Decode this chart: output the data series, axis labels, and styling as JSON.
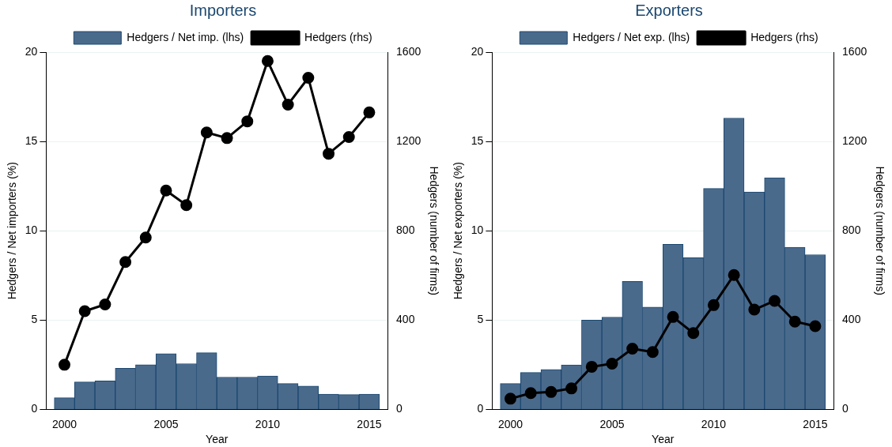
{
  "chart_data": [
    {
      "type": "bar",
      "title": "Importers",
      "xlabel": "Year",
      "ylabel": "Hedgers / Net importers (%)",
      "y2label": "Hedgers (number of firms)",
      "x": [
        2000,
        2001,
        2002,
        2003,
        2004,
        2005,
        2006,
        2007,
        2008,
        2009,
        2010,
        2011,
        2012,
        2013,
        2014,
        2015
      ],
      "xlim": [
        1999.1,
        2015.9
      ],
      "xticks": [
        2000,
        2005,
        2010,
        2015
      ],
      "ylim": [
        0,
        20
      ],
      "yticks": [
        0,
        5,
        10,
        15,
        20
      ],
      "y2lim": [
        0,
        1600
      ],
      "y2ticks": [
        0,
        400,
        800,
        1200,
        1600
      ],
      "grid": "y",
      "legend": "top",
      "series": [
        {
          "name": "Hedgers / Net imp. (lhs)",
          "color": "#4a6a8c",
          "values": [
            0.65,
            1.54,
            1.59,
            2.3,
            2.5,
            3.12,
            2.56,
            3.17,
            1.81,
            1.81,
            1.87,
            1.45,
            1.31,
            0.85,
            0.83,
            0.85
          ]
        },
        {
          "name": "Hedgers (rhs)",
          "type": "line",
          "axis": "y2",
          "color": "#000000",
          "marker": "circle",
          "values": [
            200,
            440,
            470,
            660,
            770,
            980,
            915,
            1240,
            1215,
            1290,
            1560,
            1365,
            1485,
            1145,
            1220,
            1330
          ]
        }
      ]
    },
    {
      "type": "bar",
      "title": "Exporters",
      "xlabel": "Year",
      "ylabel": "Hedgers / Net exporters (%)",
      "y2label": "Hedgers (number of firms)",
      "x": [
        2000,
        2001,
        2002,
        2003,
        2004,
        2005,
        2006,
        2007,
        2008,
        2009,
        2010,
        2011,
        2012,
        2013,
        2014,
        2015
      ],
      "xlim": [
        1999.1,
        2015.9
      ],
      "xticks": [
        2000,
        2005,
        2010,
        2015
      ],
      "ylim": [
        0,
        20
      ],
      "yticks": [
        0,
        5,
        10,
        15,
        20
      ],
      "y2lim": [
        0,
        1600
      ],
      "y2ticks": [
        0,
        400,
        800,
        1200,
        1600
      ],
      "grid": "y",
      "legend": "top",
      "series": [
        {
          "name": "Hedgers / Net exp. (lhs)",
          "color": "#4a6a8c",
          "values": [
            1.45,
            2.07,
            2.24,
            2.49,
            5.0,
            5.17,
            7.17,
            5.73,
            9.24,
            8.49,
            12.37,
            16.31,
            12.17,
            12.97,
            9.08,
            8.66
          ]
        },
        {
          "name": "Hedgers (rhs)",
          "type": "line",
          "axis": "y2",
          "color": "#000000",
          "marker": "circle",
          "values": [
            48,
            73,
            78,
            94,
            191,
            205,
            272,
            257,
            414,
            342,
            467,
            602,
            447,
            486,
            393,
            373
          ]
        }
      ]
    }
  ]
}
